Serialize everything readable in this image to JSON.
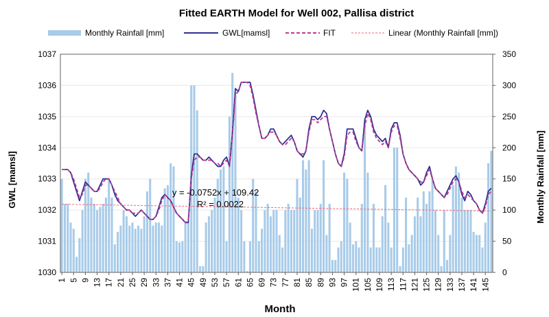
{
  "chart_data": {
    "type": "bar",
    "title": "Fitted EARTH Model for Well 002, Pallisa district",
    "xlabel": "Month",
    "ylabel": "GWL [mamsl]",
    "y2label": "Monthly Rainfall [mm]",
    "ylim": [
      1030,
      1037
    ],
    "y2lim": [
      0,
      350
    ],
    "yticks": [
      "1030",
      "1031",
      "1032",
      "1033",
      "1034",
      "1035",
      "1036",
      "1037"
    ],
    "y2ticks": [
      "0",
      "50",
      "100",
      "150",
      "200",
      "250",
      "300",
      "350"
    ],
    "xticks": [
      "1",
      "5",
      "9",
      "13",
      "17",
      "21",
      "25",
      "29",
      "33",
      "37",
      "41",
      "45",
      "49",
      "53",
      "57",
      "61",
      "65",
      "69",
      "73",
      "77",
      "81",
      "85",
      "89",
      "93",
      "97",
      "101",
      "105",
      "109",
      "113",
      "117",
      "121",
      "125",
      "129",
      "133",
      "137",
      "141",
      "145"
    ],
    "grid": "horizontal",
    "legend_position": "top",
    "legend": [
      {
        "label": "Monthly Rainfall [mm]",
        "kind": "bar"
      },
      {
        "label": "GWL[mamsl]",
        "kind": "line"
      },
      {
        "label": "FIT",
        "kind": "dashed"
      },
      {
        "label": "Linear (Monthly Rainfall [mm])",
        "kind": "dotted"
      }
    ],
    "annotation": {
      "equation": "y = -0.0752x + 109.42",
      "r2": "R² = 0.0022",
      "month": 39,
      "value": 1032.55
    },
    "trendline": {
      "slope": -0.0752,
      "intercept": 109.42,
      "axis": "y2"
    },
    "colors": {
      "bars": "#a8cbe9",
      "gwl": "#2e3192",
      "fit": "#c2378f",
      "trend": "#f2647a",
      "grid": "#e8e8e8",
      "axis": "#606060"
    },
    "months": [
      1,
      147
    ],
    "series": [
      {
        "name": "Monthly Rainfall [mm]",
        "axis": "y2",
        "values": [
          150,
          110,
          110,
          80,
          70,
          25,
          55,
          100,
          150,
          160,
          120,
          110,
          100,
          105,
          110,
          120,
          150,
          120,
          45,
          65,
          75,
          100,
          90,
          75,
          80,
          70,
          75,
          70,
          90,
          130,
          150,
          75,
          80,
          80,
          75,
          135,
          140,
          175,
          170,
          50,
          48,
          50,
          80,
          80,
          300,
          300,
          260,
          10,
          10,
          80,
          90,
          100,
          120,
          150,
          165,
          170,
          50,
          250,
          320,
          290,
          120,
          100,
          50,
          2,
          50,
          150,
          130,
          50,
          70,
          100,
          110,
          90,
          100,
          100,
          60,
          40,
          100,
          110,
          100,
          100,
          150,
          120,
          180,
          165,
          180,
          70,
          100,
          100,
          110,
          180,
          60,
          110,
          20,
          20,
          40,
          50,
          160,
          150,
          80,
          45,
          50,
          40,
          110,
          240,
          160,
          40,
          110,
          40,
          40,
          90,
          140,
          80,
          40,
          200,
          200,
          10,
          40,
          120,
          45,
          60,
          90,
          120,
          90,
          130,
          110,
          130,
          150,
          100,
          60,
          10,
          100,
          20,
          60,
          140,
          170,
          160,
          120,
          100,
          100,
          100,
          65,
          60,
          60,
          40,
          80,
          175,
          195
        ]
      },
      {
        "name": "GWL[mamsl]",
        "axis": "y",
        "values": [
          1033.3,
          1033.3,
          1033.3,
          1033.2,
          1032.9,
          1032.6,
          1032.3,
          1032.6,
          1032.9,
          1032.8,
          1032.7,
          1032.6,
          1032.6,
          1032.8,
          1033.0,
          1033.0,
          1033.0,
          1032.8,
          1032.5,
          1032.3,
          1032.2,
          1032.1,
          1032.0,
          1032.0,
          1031.9,
          1031.8,
          1031.9,
          1032.0,
          1031.9,
          1031.8,
          1031.7,
          1031.7,
          1031.8,
          1032.1,
          1032.4,
          1032.5,
          1032.4,
          1032.3,
          1032.1,
          1031.9,
          1031.8,
          1031.7,
          1031.6,
          1031.6,
          1033.1,
          1033.8,
          1033.8,
          1033.7,
          1033.6,
          1033.6,
          1033.7,
          1033.6,
          1033.5,
          1033.4,
          1033.4,
          1033.6,
          1033.7,
          1033.4,
          1034.5,
          1035.9,
          1035.8,
          1036.1,
          1036.1,
          1036.1,
          1036.1,
          1035.7,
          1035.2,
          1034.7,
          1034.3,
          1034.3,
          1034.4,
          1034.6,
          1034.6,
          1034.4,
          1034.2,
          1034.1,
          1034.2,
          1034.3,
          1034.4,
          1034.2,
          1033.9,
          1033.8,
          1033.7,
          1033.9,
          1034.6,
          1035.0,
          1035.0,
          1034.9,
          1035.0,
          1035.2,
          1035.1,
          1034.6,
          1034.2,
          1033.8,
          1033.5,
          1033.4,
          1033.8,
          1034.6,
          1034.6,
          1034.6,
          1034.3,
          1034.0,
          1033.9,
          1034.9,
          1035.2,
          1035.0,
          1034.6,
          1034.4,
          1034.3,
          1034.2,
          1034.3,
          1034.0,
          1034.6,
          1034.8,
          1034.8,
          1034.4,
          1033.8,
          1033.5,
          1033.3,
          1033.2,
          1033.1,
          1033.0,
          1032.8,
          1032.9,
          1033.2,
          1033.4,
          1033.0,
          1032.7,
          1032.6,
          1032.5,
          1032.4,
          1032.6,
          1032.8,
          1033.0,
          1033.1,
          1032.9,
          1032.5,
          1032.3,
          1032.6,
          1032.5,
          1032.3,
          1032.2,
          1032.0,
          1031.9,
          1032.2,
          1032.6,
          1032.7
        ]
      },
      {
        "name": "FIT",
        "axis": "y",
        "values": [
          1033.3,
          1033.3,
          1033.3,
          1033.2,
          1033.0,
          1032.7,
          1032.4,
          1032.5,
          1032.8,
          1032.8,
          1032.7,
          1032.6,
          1032.6,
          1032.7,
          1032.9,
          1033.0,
          1033.0,
          1032.8,
          1032.6,
          1032.4,
          1032.2,
          1032.1,
          1032.0,
          1032.0,
          1031.9,
          1031.9,
          1031.9,
          1032.0,
          1031.9,
          1031.8,
          1031.7,
          1031.7,
          1031.8,
          1032.0,
          1032.3,
          1032.5,
          1032.4,
          1032.3,
          1032.1,
          1031.9,
          1031.8,
          1031.7,
          1031.6,
          1031.7,
          1033.0,
          1033.6,
          1033.7,
          1033.7,
          1033.6,
          1033.6,
          1033.6,
          1033.6,
          1033.5,
          1033.5,
          1033.4,
          1033.5,
          1033.6,
          1033.4,
          1034.4,
          1035.7,
          1035.8,
          1036.1,
          1036.1,
          1036.1,
          1036.0,
          1035.6,
          1035.1,
          1034.7,
          1034.3,
          1034.3,
          1034.4,
          1034.5,
          1034.5,
          1034.4,
          1034.2,
          1034.1,
          1034.1,
          1034.2,
          1034.3,
          1034.2,
          1033.9,
          1033.8,
          1033.8,
          1033.9,
          1034.5,
          1034.9,
          1034.9,
          1034.8,
          1034.9,
          1035.0,
          1035.0,
          1034.6,
          1034.2,
          1033.8,
          1033.5,
          1033.4,
          1033.7,
          1034.4,
          1034.5,
          1034.5,
          1034.2,
          1034.0,
          1033.9,
          1034.7,
          1035.1,
          1034.9,
          1034.5,
          1034.3,
          1034.2,
          1034.1,
          1034.2,
          1034.0,
          1034.5,
          1034.7,
          1034.7,
          1034.3,
          1033.8,
          1033.5,
          1033.3,
          1033.2,
          1033.1,
          1033.0,
          1032.9,
          1032.9,
          1033.1,
          1033.3,
          1033.0,
          1032.7,
          1032.6,
          1032.5,
          1032.4,
          1032.5,
          1032.7,
          1032.9,
          1033.0,
          1032.9,
          1032.6,
          1032.4,
          1032.5,
          1032.4,
          1032.3,
          1032.2,
          1032.0,
          1031.9,
          1032.1,
          1032.5,
          1032.6
        ]
      }
    ]
  }
}
